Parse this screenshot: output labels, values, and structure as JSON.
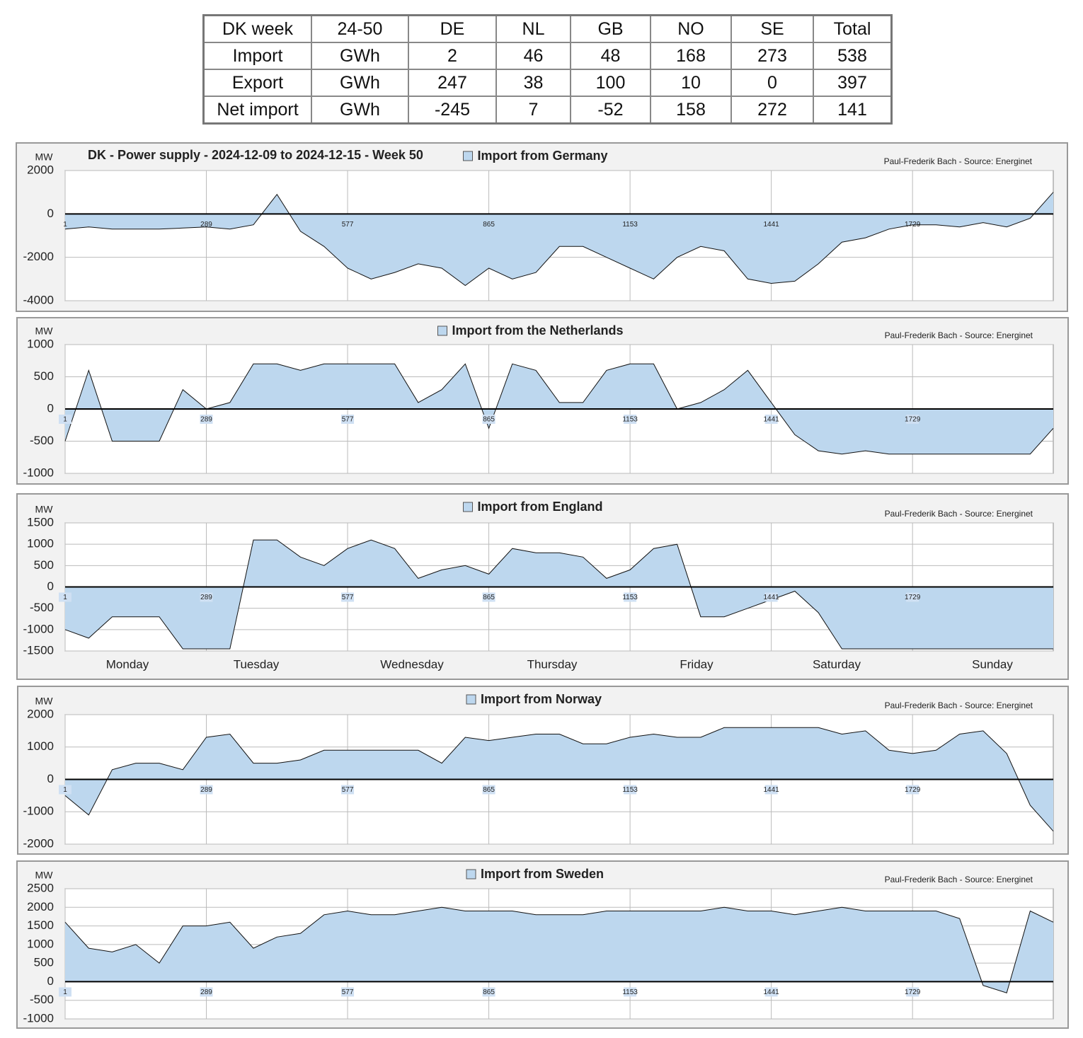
{
  "table": {
    "rows": [
      [
        "DK week",
        "24-50",
        "DE",
        "NL",
        "GB",
        "NO",
        "SE",
        "Total"
      ],
      [
        "Import",
        "GWh",
        2,
        46,
        48,
        168,
        273,
        538
      ],
      [
        "Export",
        "GWh",
        247,
        38,
        100,
        10,
        0,
        397
      ],
      [
        "Net import",
        "GWh",
        -245,
        7,
        -52,
        158,
        272,
        141
      ]
    ]
  },
  "chart_data": [
    {
      "type": "area",
      "title": "DK - Power supply - 2024-12-09 to 2024-12-15 - Week 50",
      "y_label": "MW",
      "source": "Paul-Frederik Bach - Source: Energinet",
      "x": [
        1,
        49,
        97,
        145,
        193,
        241,
        289,
        337,
        385,
        433,
        481,
        529,
        577,
        625,
        673,
        721,
        769,
        817,
        865,
        913,
        961,
        1009,
        1057,
        1105,
        1153,
        1201,
        1249,
        1297,
        1345,
        1393,
        1441,
        1489,
        1537,
        1585,
        1633,
        1681,
        1729,
        1777,
        1825,
        1873,
        1921,
        1969,
        2016
      ],
      "series": [
        {
          "name": "Import from Germany",
          "color": "#bdd7ee",
          "values": [
            -700,
            -600,
            -700,
            -700,
            -700,
            -650,
            -600,
            -700,
            -500,
            900,
            -800,
            -1500,
            -2500,
            -3000,
            -2700,
            -2300,
            -2500,
            -3300,
            -2500,
            -3000,
            -2700,
            -1500,
            -1500,
            -2000,
            -2500,
            -3000,
            -2000,
            -1500,
            -1700,
            -3000,
            -3200,
            -3100,
            -2300,
            -1300,
            -1100,
            -700,
            -500,
            -500,
            -600,
            -400,
            -600,
            -200,
            1000
          ]
        }
      ],
      "xlim": [
        1,
        2016
      ],
      "xticks": [
        1,
        289,
        577,
        865,
        1153,
        1441,
        1729
      ],
      "ylim": [
        -4000,
        2000
      ],
      "yticks": [
        -4000,
        -2000,
        0,
        2000
      ],
      "grid": true
    },
    {
      "type": "area",
      "y_label": "MW",
      "source": "Paul-Frederik Bach - Source: Energinet",
      "x": [
        1,
        49,
        97,
        145,
        193,
        241,
        289,
        337,
        385,
        433,
        481,
        529,
        577,
        625,
        673,
        721,
        769,
        817,
        865,
        913,
        961,
        1009,
        1057,
        1105,
        1153,
        1201,
        1249,
        1297,
        1345,
        1393,
        1441,
        1489,
        1537,
        1585,
        1633,
        1681,
        1729,
        1777,
        1825,
        1873,
        1921,
        1969,
        2016
      ],
      "series": [
        {
          "name": "Import from the Netherlands",
          "color": "#bdd7ee",
          "values": [
            -500,
            600,
            -500,
            -500,
            -500,
            300,
            0,
            100,
            700,
            700,
            600,
            700,
            700,
            700,
            700,
            100,
            300,
            700,
            -300,
            700,
            600,
            100,
            100,
            600,
            700,
            700,
            0,
            100,
            300,
            600,
            100,
            -400,
            -650,
            -700,
            -650,
            -700,
            -700,
            -700,
            -700,
            -700,
            -700,
            -700,
            -300
          ]
        }
      ],
      "xlim": [
        1,
        2016
      ],
      "xticks": [
        1,
        289,
        577,
        865,
        1153,
        1441,
        1729
      ],
      "ylim": [
        -1000,
        1000
      ],
      "yticks": [
        -1000,
        -500,
        0,
        500,
        1000
      ],
      "grid": true
    },
    {
      "type": "area",
      "y_label": "MW",
      "source": "Paul-Frederik Bach - Source: Energinet",
      "day_labels": [
        "Monday",
        "Tuesday",
        "Wednesday",
        "Thursday",
        "Friday",
        "Saturday",
        "Sunday"
      ],
      "x": [
        1,
        49,
        97,
        145,
        193,
        241,
        289,
        337,
        385,
        433,
        481,
        529,
        577,
        625,
        673,
        721,
        769,
        817,
        865,
        913,
        961,
        1009,
        1057,
        1105,
        1153,
        1201,
        1249,
        1297,
        1345,
        1393,
        1441,
        1489,
        1537,
        1585,
        1633,
        1681,
        1729,
        1777,
        1825,
        1873,
        1921,
        1969,
        2016
      ],
      "series": [
        {
          "name": "Import from England",
          "color": "#bdd7ee",
          "values": [
            -1000,
            -1200,
            -700,
            -700,
            -700,
            -1450,
            -1450,
            -1450,
            1100,
            1100,
            700,
            500,
            900,
            1100,
            900,
            200,
            400,
            500,
            300,
            900,
            800,
            800,
            700,
            200,
            400,
            900,
            1000,
            -700,
            -700,
            -500,
            -300,
            -100,
            -600,
            -1450,
            -1450,
            -1450,
            -1450,
            -1450,
            -1450,
            -1450,
            -1450,
            -1450,
            -1450
          ]
        }
      ],
      "xlim": [
        1,
        2016
      ],
      "xticks": [
        1,
        289,
        577,
        865,
        1153,
        1441,
        1729
      ],
      "ylim": [
        -1500,
        1500
      ],
      "yticks": [
        -1500,
        -1000,
        -500,
        0,
        500,
        1000,
        1500
      ],
      "grid": true
    },
    {
      "type": "area",
      "y_label": "MW",
      "source": "Paul-Frederik Bach - Source: Energinet",
      "x": [
        1,
        49,
        97,
        145,
        193,
        241,
        289,
        337,
        385,
        433,
        481,
        529,
        577,
        625,
        673,
        721,
        769,
        817,
        865,
        913,
        961,
        1009,
        1057,
        1105,
        1153,
        1201,
        1249,
        1297,
        1345,
        1393,
        1441,
        1489,
        1537,
        1585,
        1633,
        1681,
        1729,
        1777,
        1825,
        1873,
        1921,
        1969,
        2016
      ],
      "series": [
        {
          "name": "Import from Norway",
          "color": "#bdd7ee",
          "values": [
            -500,
            -1100,
            300,
            500,
            500,
            300,
            1300,
            1400,
            500,
            500,
            600,
            900,
            900,
            900,
            900,
            900,
            500,
            1300,
            1200,
            1300,
            1400,
            1400,
            1100,
            1100,
            1300,
            1400,
            1300,
            1300,
            1600,
            1600,
            1600,
            1600,
            1600,
            1400,
            1500,
            900,
            800,
            900,
            1400,
            1500,
            800,
            -800,
            -1600
          ]
        }
      ],
      "xlim": [
        1,
        2016
      ],
      "xticks": [
        1,
        289,
        577,
        865,
        1153,
        1441,
        1729
      ],
      "ylim": [
        -2000,
        2000
      ],
      "yticks": [
        -2000,
        -1000,
        0,
        1000,
        2000
      ],
      "grid": true
    },
    {
      "type": "area",
      "y_label": "MW",
      "source": "Paul-Frederik Bach - Source: Energinet",
      "x": [
        1,
        49,
        97,
        145,
        193,
        241,
        289,
        337,
        385,
        433,
        481,
        529,
        577,
        625,
        673,
        721,
        769,
        817,
        865,
        913,
        961,
        1009,
        1057,
        1105,
        1153,
        1201,
        1249,
        1297,
        1345,
        1393,
        1441,
        1489,
        1537,
        1585,
        1633,
        1681,
        1729,
        1777,
        1825,
        1873,
        1921,
        1969,
        2016
      ],
      "series": [
        {
          "name": "Import from Sweden",
          "color": "#bdd7ee",
          "values": [
            1600,
            900,
            800,
            1000,
            500,
            1500,
            1500,
            1600,
            900,
            1200,
            1300,
            1800,
            1900,
            1800,
            1800,
            1900,
            2000,
            1900,
            1900,
            1900,
            1800,
            1800,
            1800,
            1900,
            1900,
            1900,
            1900,
            1900,
            2000,
            1900,
            1900,
            1800,
            1900,
            2000,
            1900,
            1900,
            1900,
            1900,
            1700,
            -100,
            -300,
            1900,
            1600
          ]
        }
      ],
      "xlim": [
        1,
        2016
      ],
      "xticks": [
        1,
        289,
        577,
        865,
        1153,
        1441,
        1729
      ],
      "ylim": [
        -1000,
        2500
      ],
      "yticks": [
        -1000,
        -500,
        0,
        500,
        1000,
        1500,
        2000,
        2500
      ],
      "grid": true
    }
  ]
}
